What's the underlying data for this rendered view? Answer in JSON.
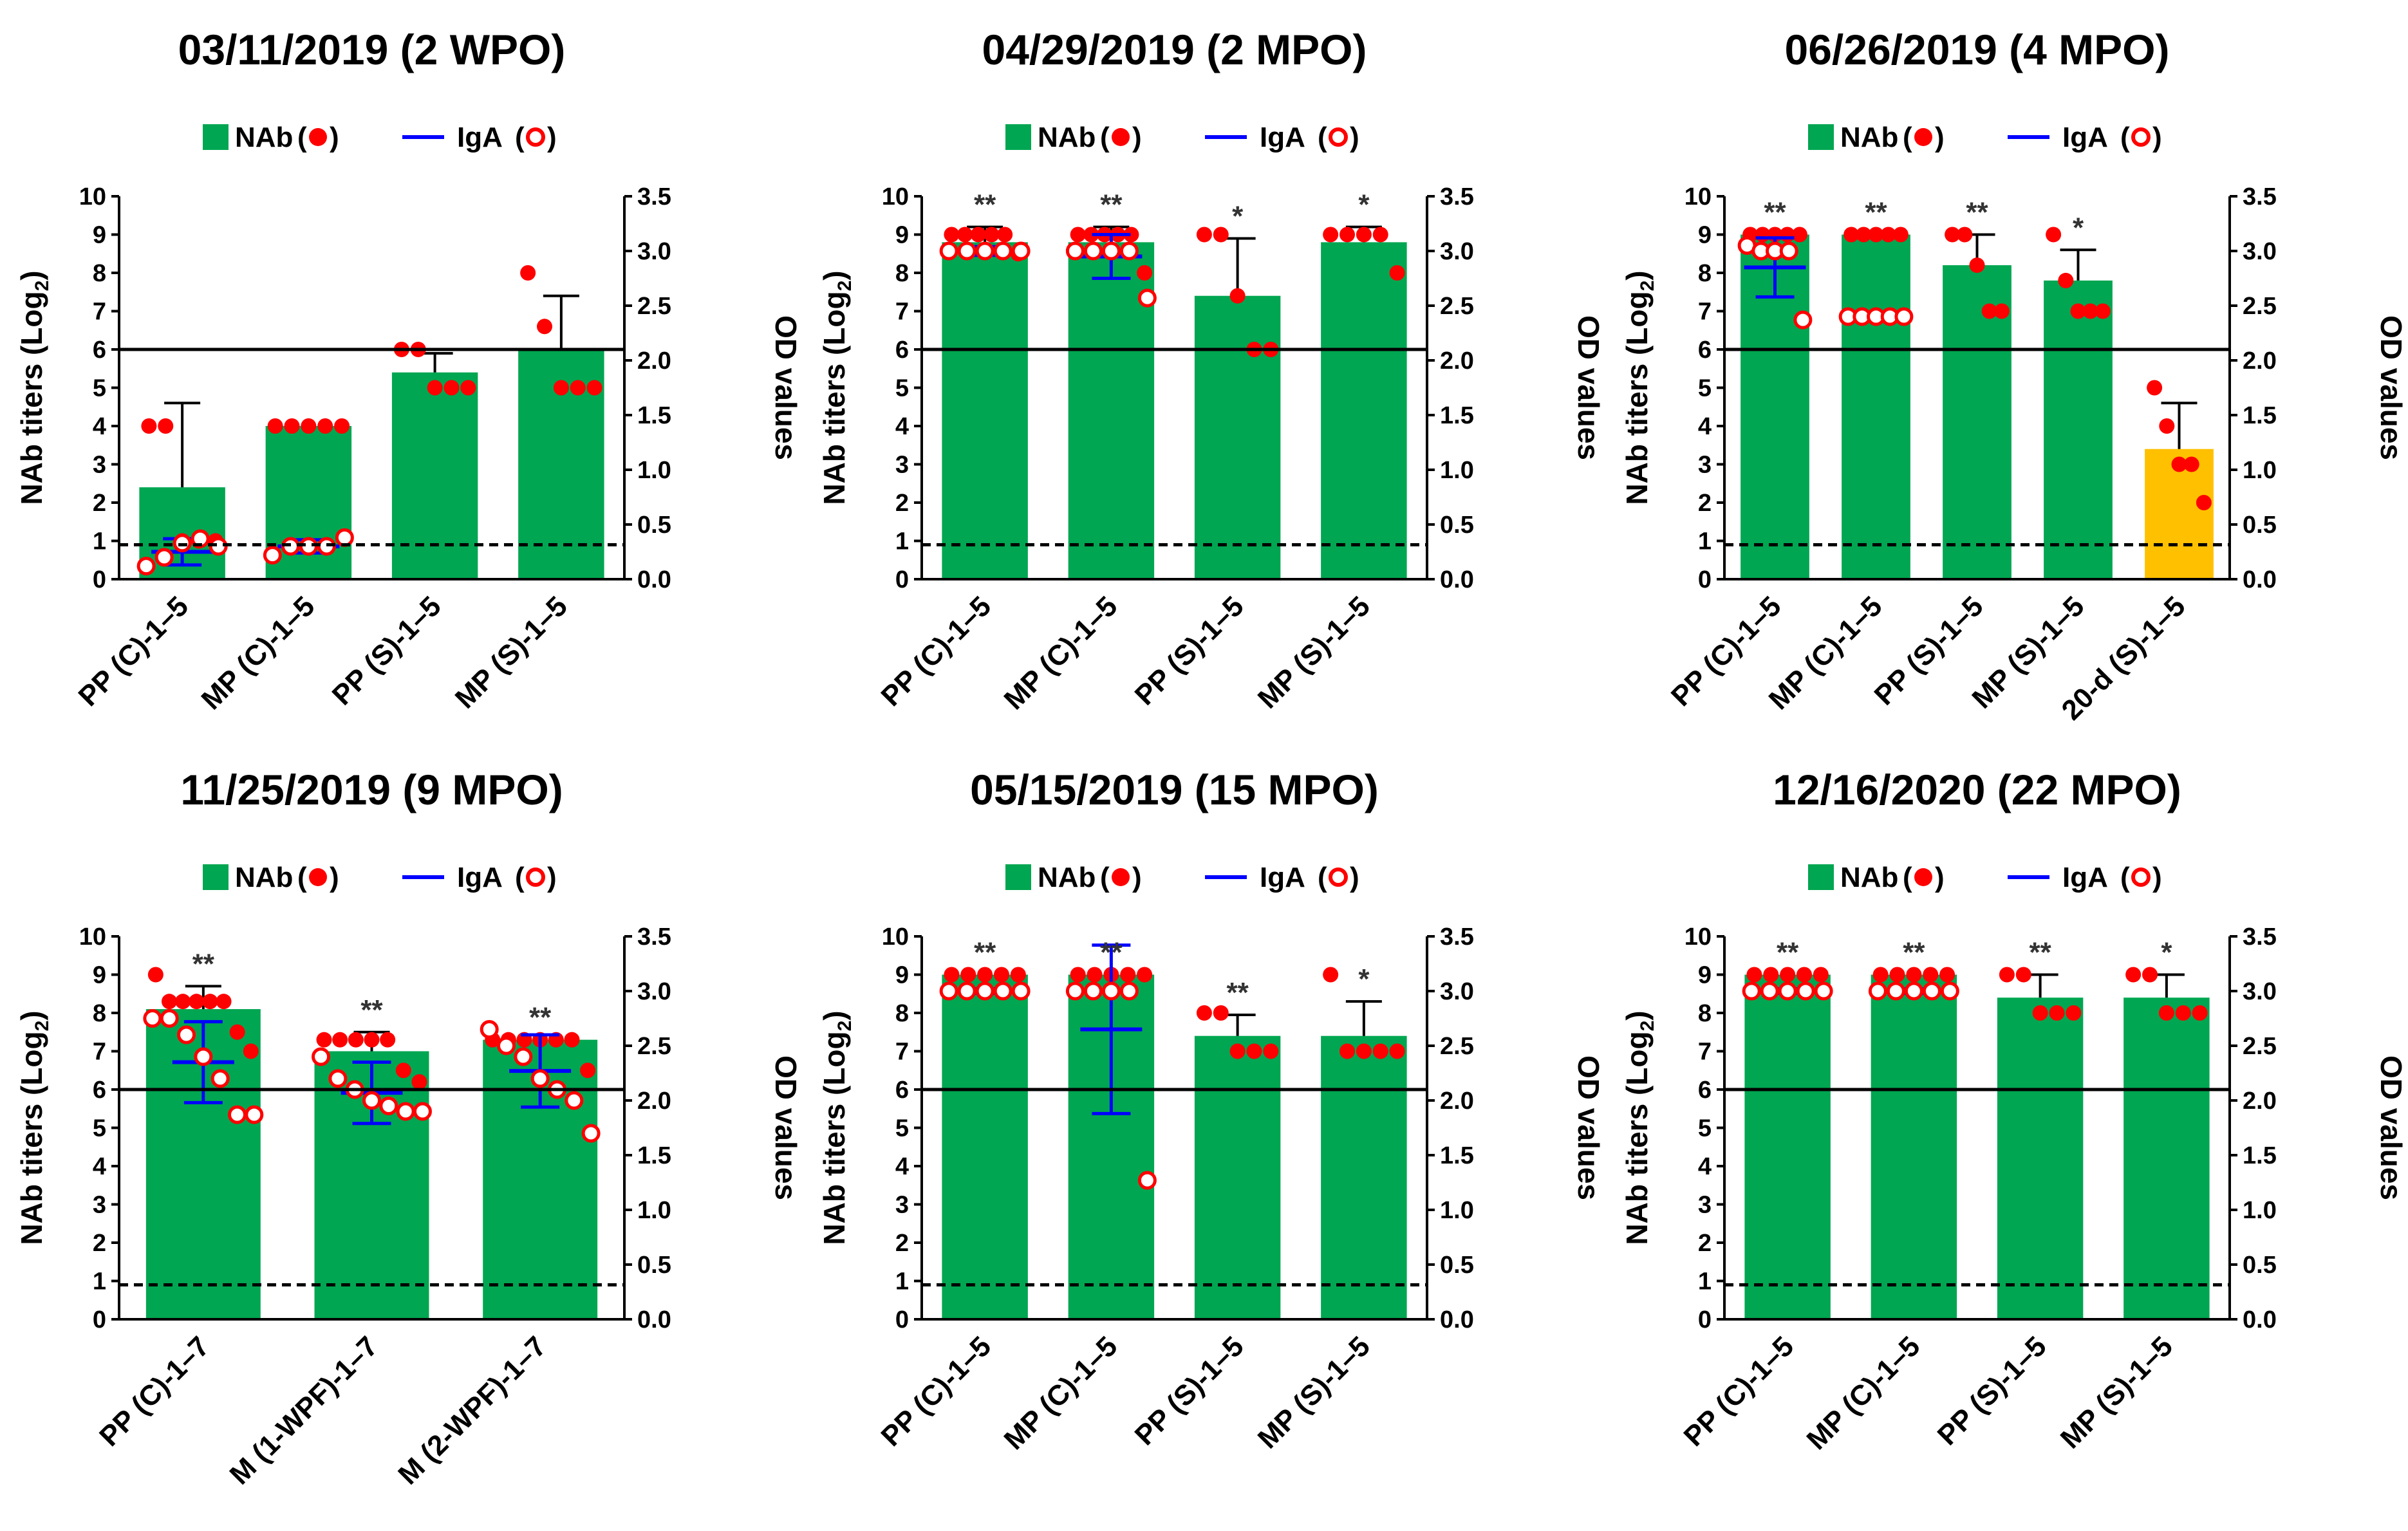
{
  "shared": {
    "legend": {
      "nab_label": "NAb",
      "iga_label": "IgA"
    },
    "y_left_label": "NAb titers (Log",
    "y_left_sub": "2",
    "y_left_close": ")",
    "y_right_label": "OD values",
    "y_left_ticks": [
      "0",
      "1",
      "2",
      "3",
      "4",
      "5",
      "6",
      "7",
      "8",
      "9",
      "10"
    ],
    "y_right_ticks": [
      "0.0",
      "0.5",
      "1.0",
      "1.5",
      "2.0",
      "2.5",
      "3.0",
      "3.5"
    ],
    "colors": {
      "bar": "#00A651",
      "bar_alt": "#FFC000",
      "dot": "#FF0000",
      "iga": "#0000FF"
    }
  },
  "chart_data": [
    {
      "type": "bar",
      "title": "03/11/2019 (2 WPO)",
      "ylabel": "NAb titers (Log2)",
      "y2label": "OD values",
      "ylim": [
        0,
        10
      ],
      "y2lim": [
        0,
        3.5
      ],
      "threshold_solid": 6,
      "threshold_dashed": 0.9,
      "categories": [
        "PP (C)-1–5",
        "MP (C)-1–5",
        "PP (S)-1–5",
        "MP (S)-1–5"
      ],
      "values": [
        2.4,
        4.0,
        5.4,
        6.0
      ],
      "errors": [
        2.2,
        0,
        0.5,
        1.4
      ],
      "bar_colors": [
        "green",
        "green",
        "green",
        "green"
      ],
      "points": [
        [
          4,
          4,
          1,
          1,
          1
        ],
        [
          4,
          4,
          4,
          4,
          4
        ],
        [
          6,
          6,
          5,
          5,
          5
        ],
        [
          8,
          6.6,
          5,
          5,
          5
        ]
      ],
      "significance": [
        "",
        "",
        "",
        ""
      ],
      "iga": [
        {
          "mean": 0.25,
          "sd": 0.12,
          "points": [
            0.12,
            0.2,
            0.33,
            0.37,
            0.3
          ]
        },
        {
          "mean": 0.3,
          "sd": 0.06,
          "points": [
            0.22,
            0.3,
            0.3,
            0.3,
            0.38
          ]
        },
        null,
        null
      ]
    },
    {
      "type": "bar",
      "title": "04/29/2019 (2 MPO)",
      "ylabel": "NAb titers (Log2)",
      "y2label": "OD values",
      "ylim": [
        0,
        10
      ],
      "y2lim": [
        0,
        3.5
      ],
      "threshold_solid": 6,
      "threshold_dashed": 0.9,
      "categories": [
        "PP (C)-1–5",
        "MP (C)-1–5",
        "PP (S)-1–5",
        "MP (S)-1–5"
      ],
      "values": [
        8.8,
        8.8,
        7.4,
        8.8
      ],
      "errors": [
        0.4,
        0.4,
        1.5,
        0.4
      ],
      "bar_colors": [
        "green",
        "green",
        "green",
        "green"
      ],
      "points": [
        [
          9,
          9,
          9,
          9,
          9,
          8.5
        ],
        [
          9,
          9,
          9,
          9,
          9,
          8
        ],
        [
          9,
          9,
          7.4,
          6,
          6
        ],
        [
          9,
          9,
          9,
          9,
          8
        ]
      ],
      "significance": [
        "**",
        "**",
        "*",
        "*"
      ],
      "iga": [
        {
          "mean": 3.0,
          "sd": 0.04,
          "points": [
            3.0,
            3.0,
            3.0,
            3.0,
            3.0
          ]
        },
        {
          "mean": 2.95,
          "sd": 0.2,
          "points": [
            3.0,
            3.0,
            3.0,
            3.0,
            2.57
          ]
        },
        null,
        null
      ]
    },
    {
      "type": "bar",
      "title": "06/26/2019 (4 MPO)",
      "ylabel": "NAb titers (Log2)",
      "y2label": "OD values",
      "ylim": [
        0,
        10
      ],
      "y2lim": [
        0,
        3.5
      ],
      "threshold_solid": 6,
      "threshold_dashed": 0.9,
      "categories": [
        "PP (C)-1–5",
        "MP (C)-1–5",
        "PP (S)-1–5",
        "MP (S)-1–5",
        "20-d (S)-1–5"
      ],
      "values": [
        9.0,
        9.0,
        8.2,
        7.8,
        3.4
      ],
      "errors": [
        0,
        0,
        0.8,
        0.8,
        1.2
      ],
      "bar_colors": [
        "green",
        "green",
        "green",
        "green",
        "orange"
      ],
      "points": [
        [
          9,
          9,
          9,
          9,
          9
        ],
        [
          9,
          9,
          9,
          9,
          9
        ],
        [
          9,
          9,
          8.2,
          7,
          7
        ],
        [
          9,
          7.8,
          7,
          7,
          7
        ],
        [
          5,
          4,
          3,
          3,
          2
        ]
      ],
      "significance": [
        "**",
        "**",
        "**",
        "*",
        ""
      ],
      "iga": [
        {
          "mean": 2.85,
          "sd": 0.27,
          "points": [
            3.05,
            3.0,
            3.0,
            3.0,
            2.37
          ]
        },
        {
          "mean": 2.4,
          "sd": 0.02,
          "points": [
            2.4,
            2.4,
            2.4,
            2.4,
            2.4
          ]
        },
        null,
        null,
        null
      ]
    },
    {
      "type": "bar",
      "title": "11/25/2019 (9 MPO)",
      "ylabel": "NAb titers (Log2)",
      "y2label": "OD values",
      "ylim": [
        0,
        10
      ],
      "y2lim": [
        0,
        3.5
      ],
      "threshold_solid": 6,
      "threshold_dashed": 0.9,
      "categories": [
        "PP (C)-1–7",
        "M (1-WPF)-1–7",
        "M (2-WPF)-1–7"
      ],
      "values": [
        8.1,
        7.0,
        7.3
      ],
      "errors": [
        0.6,
        0.5,
        0
      ],
      "bar_colors": [
        "green",
        "green",
        "green"
      ],
      "points": [
        [
          9,
          8.3,
          8.3,
          8.3,
          8.3,
          8.3,
          7.5,
          7.0
        ],
        [
          7.3,
          7.3,
          7.3,
          7.3,
          7.3,
          6.5,
          6.2
        ],
        [
          7.3,
          7.3,
          7.3,
          7.3,
          7.3,
          7.3,
          6.5
        ]
      ],
      "significance": [
        "**",
        "**",
        "**"
      ],
      "iga": [
        {
          "mean": 2.35,
          "sd": 0.37,
          "points": [
            2.75,
            2.75,
            2.6,
            2.4,
            2.2,
            1.87,
            1.87
          ]
        },
        {
          "mean": 2.07,
          "sd": 0.28,
          "points": [
            2.4,
            2.2,
            2.1,
            2.0,
            1.95,
            1.9,
            1.9
          ]
        },
        {
          "mean": 2.27,
          "sd": 0.33,
          "points": [
            2.65,
            2.5,
            2.4,
            2.2,
            2.1,
            2.0,
            1.7
          ]
        }
      ]
    },
    {
      "type": "bar",
      "title": "05/15/2019 (15 MPO)",
      "ylabel": "NAb titers (Log2)",
      "y2label": "OD values",
      "ylim": [
        0,
        10
      ],
      "y2lim": [
        0,
        3.5
      ],
      "threshold_solid": 6,
      "threshold_dashed": 0.9,
      "categories": [
        "PP (C)-1–5",
        "MP (C)-1–5",
        "PP (S)-1–5",
        "MP (S)-1–5"
      ],
      "values": [
        9.0,
        9.0,
        7.4,
        7.4
      ],
      "errors": [
        0,
        0,
        0.55,
        0.9
      ],
      "bar_colors": [
        "green",
        "green",
        "green",
        "green"
      ],
      "points": [
        [
          9,
          9,
          9,
          9,
          9
        ],
        [
          9,
          9,
          9,
          9,
          9
        ],
        [
          8,
          8,
          7,
          7,
          7
        ],
        [
          9,
          7,
          7,
          7,
          7
        ]
      ],
      "significance": [
        "**",
        "**",
        "**",
        "*"
      ],
      "iga": [
        {
          "mean": 3.0,
          "sd": 0.02,
          "points": [
            3.0,
            3.0,
            3.0,
            3.0,
            3.0
          ]
        },
        {
          "mean": 2.65,
          "sd": 0.77,
          "points": [
            3.0,
            3.0,
            3.0,
            3.0,
            1.27
          ]
        },
        null,
        null
      ]
    },
    {
      "type": "bar",
      "title": "12/16/2020 (22 MPO)",
      "ylabel": "NAb titers (Log2)",
      "y2label": "OD values",
      "ylim": [
        0,
        10
      ],
      "y2lim": [
        0,
        3.5
      ],
      "threshold_solid": 6,
      "threshold_dashed": 0.9,
      "categories": [
        "PP (C)-1–5",
        "MP (C)-1–5",
        "PP (S)-1–5",
        "MP (S)-1–5"
      ],
      "values": [
        9.0,
        9.0,
        8.4,
        8.4
      ],
      "errors": [
        0,
        0,
        0.6,
        0.6
      ],
      "bar_colors": [
        "green",
        "green",
        "green",
        "green"
      ],
      "points": [
        [
          9,
          9,
          9,
          9,
          9
        ],
        [
          9,
          9,
          9,
          9,
          9
        ],
        [
          9,
          9,
          8,
          8,
          8
        ],
        [
          9,
          9,
          8,
          8,
          8
        ]
      ],
      "significance": [
        "**",
        "**",
        "**",
        "*"
      ],
      "iga": [
        {
          "mean": 3.0,
          "sd": 0.02,
          "points": [
            3.0,
            3.0,
            3.0,
            3.0,
            3.0
          ]
        },
        {
          "mean": 3.0,
          "sd": 0.02,
          "points": [
            3.0,
            3.0,
            3.0,
            3.0,
            3.0
          ]
        },
        null,
        null
      ]
    }
  ]
}
